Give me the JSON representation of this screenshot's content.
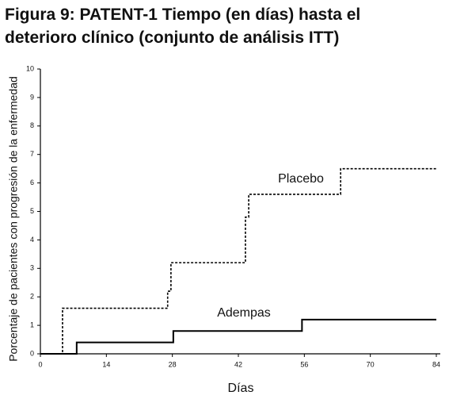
{
  "chart_data": {
    "type": "line",
    "step": "post",
    "title": "Figura 9: PATENT-1 Tiempo (en días) hasta el deterioro clínico (conjunto de análisis ITT)",
    "xlabel": "Días",
    "ylabel": "Porcentaje de pacientes con progresión de la enfermedad",
    "xlim": [
      0,
      84
    ],
    "xticks": [
      0,
      14,
      28,
      42,
      56,
      70,
      84
    ],
    "ylim": [
      0,
      10
    ],
    "yticks": [
      0,
      1,
      2,
      3,
      4,
      5,
      6,
      7,
      8,
      9,
      10
    ],
    "series": [
      {
        "name": "Placebo",
        "color": "#000000",
        "dash": true,
        "x": [
          0,
          4.7,
          27,
          27.7,
          43.5,
          44.2,
          63.7,
          84
        ],
        "values": [
          0,
          1.6,
          2.2,
          3.2,
          4.8,
          5.6,
          6.5,
          6.5
        ]
      },
      {
        "name": "Adempas",
        "color": "#000000",
        "dash": false,
        "x": [
          0,
          7.7,
          28.2,
          55.5,
          84
        ],
        "values": [
          0,
          0.4,
          0.8,
          1.2,
          1.2
        ]
      }
    ]
  }
}
